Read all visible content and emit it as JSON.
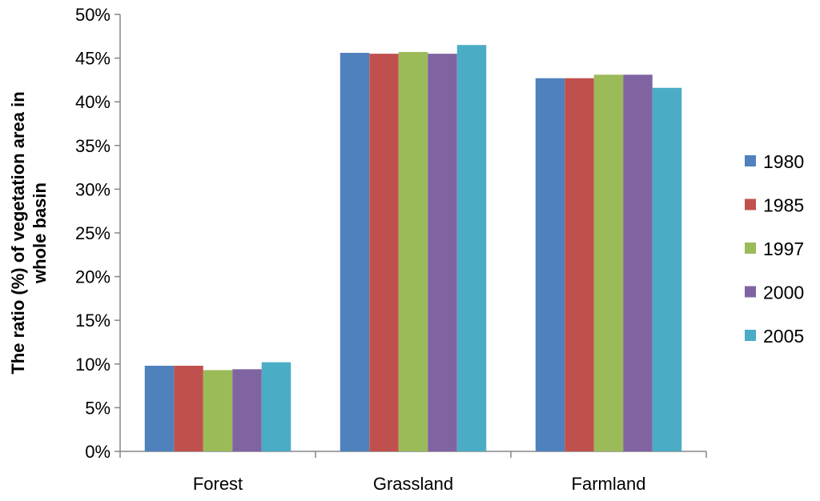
{
  "chart_data": {
    "type": "bar",
    "title": "",
    "xlabel": "",
    "ylabel_lines": [
      "The ratio (%) of vegetation area in",
      "whole basin"
    ],
    "categories": [
      "Forest",
      "Grassland",
      "Farmland"
    ],
    "series": [
      {
        "name": "1980",
        "color": "#4F81BD",
        "values": [
          9.8,
          45.6,
          42.7
        ]
      },
      {
        "name": "1985",
        "color": "#C0504D",
        "values": [
          9.8,
          45.5,
          42.7
        ]
      },
      {
        "name": "1997",
        "color": "#9BBB59",
        "values": [
          9.3,
          45.7,
          43.1
        ]
      },
      {
        "name": "2000",
        "color": "#8064A2",
        "values": [
          9.4,
          45.5,
          43.1
        ]
      },
      {
        "name": "2005",
        "color": "#4BACC6",
        "values": [
          10.2,
          46.5,
          41.6
        ]
      }
    ],
    "ylim": [
      0,
      50
    ],
    "yticks": [
      0,
      5,
      10,
      15,
      20,
      25,
      30,
      35,
      40,
      45,
      50
    ],
    "ytick_suffix": "%",
    "grid": false,
    "legend_position": "right"
  }
}
